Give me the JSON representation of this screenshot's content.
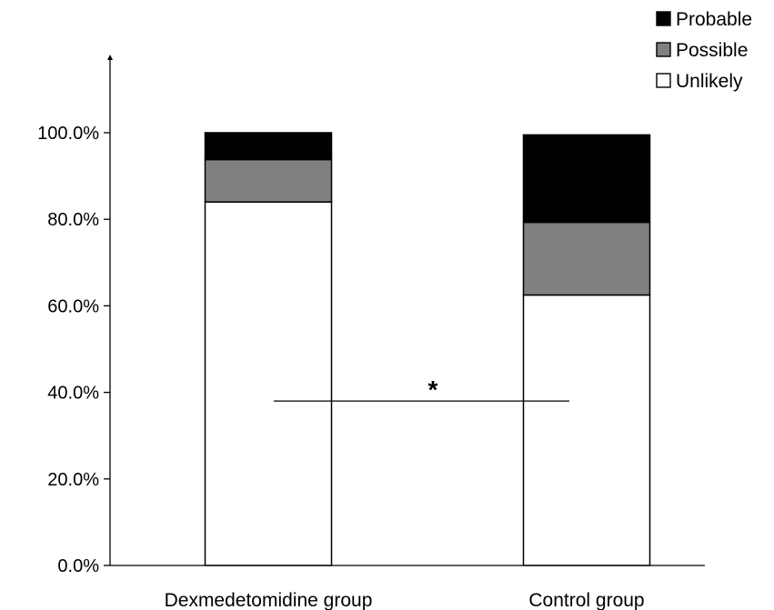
{
  "chart_data": {
    "type": "bar",
    "stacked": true,
    "categories": [
      "Dexmedetomidine group",
      "Control group"
    ],
    "series": [
      {
        "name": "Unlikely",
        "values": [
          84.0,
          62.5
        ],
        "color": "#ffffff"
      },
      {
        "name": "Possible",
        "values": [
          9.8,
          16.8
        ],
        "color": "#808080"
      },
      {
        "name": "Probable",
        "values": [
          6.2,
          20.2
        ],
        "color": "#000000"
      }
    ],
    "ylim": [
      0,
      100
    ],
    "yticks": [
      0,
      20,
      40,
      60,
      80,
      100
    ],
    "ytick_labels": [
      "0.0%",
      "20.0%",
      "40.0%",
      "60.0%",
      "80.0%",
      "100.0%"
    ],
    "legend_order": [
      "Probable",
      "Possible",
      "Unlikely"
    ],
    "legend_position": "top-right",
    "annotations": [
      {
        "text": "*",
        "type": "significance-bracket",
        "between": [
          "Dexmedetomidine group",
          "Control group"
        ],
        "y": 38
      }
    ],
    "grid": false,
    "title": "",
    "xlabel": "",
    "ylabel": ""
  }
}
